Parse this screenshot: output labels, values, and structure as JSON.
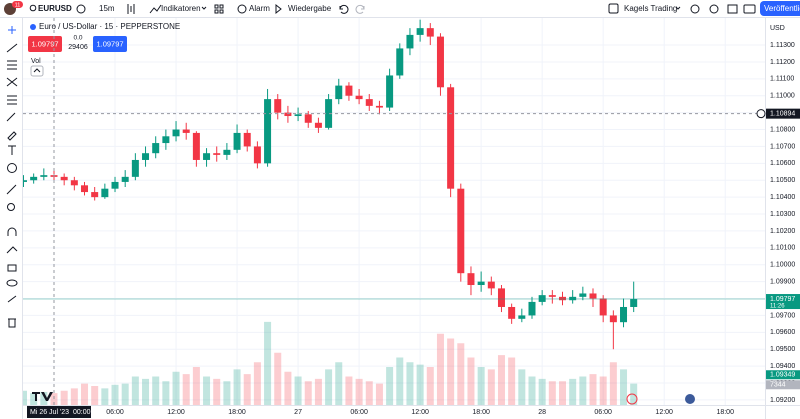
{
  "toolbar": {
    "badge": "11",
    "symbol": "EURUSD",
    "interval": "15m",
    "indicators": "Indikatoren",
    "alert": "Alarm",
    "replay": "Wiedergabe",
    "account": "Kagels Trading",
    "publish": "Veröffentlichen"
  },
  "legend": {
    "title": "Euro / US-Dollar · 15 · PEPPERSTONE",
    "sell": "1.09797",
    "spread": "0.0",
    "count": "29406",
    "buy": "1.09797",
    "vol": "Vol"
  },
  "chart_data": {
    "type": "candlestick",
    "currency": "USD",
    "ylim": [
      1.0917,
      1.1146
    ],
    "yticks": [
      {
        "value": 1.092,
        "label": "1.09200"
      },
      {
        "value": 1.093,
        "label": "1.09300"
      },
      {
        "value": 1.094,
        "label": "1.09400"
      },
      {
        "value": 1.095,
        "label": "1.09500"
      },
      {
        "value": 1.096,
        "label": "1.09600"
      },
      {
        "value": 1.097,
        "label": "1.09700"
      },
      {
        "value": 1.098,
        "label": "1.09800"
      },
      {
        "value": 1.099,
        "label": "1.09900"
      },
      {
        "value": 1.1,
        "label": "1.10000"
      },
      {
        "value": 1.101,
        "label": "1.10100"
      },
      {
        "value": 1.102,
        "label": "1.10200"
      },
      {
        "value": 1.103,
        "label": "1.10300"
      },
      {
        "value": 1.104,
        "label": "1.10400"
      },
      {
        "value": 1.105,
        "label": "1.10500"
      },
      {
        "value": 1.106,
        "label": "1.10600"
      },
      {
        "value": 1.107,
        "label": "1.10700"
      },
      {
        "value": 1.108,
        "label": "1.10800"
      },
      {
        "value": 1.109,
        "label": "1.10900"
      },
      {
        "value": 1.11,
        "label": "1.11000"
      },
      {
        "value": 1.111,
        "label": "1.11100"
      },
      {
        "value": 1.112,
        "label": "1.11200"
      },
      {
        "value": 1.113,
        "label": "1.11300"
      }
    ],
    "time_labels": [
      "06:00",
      "12:00",
      "18:00",
      "27",
      "06:00",
      "12:00",
      "18:00",
      "28",
      "06:00",
      "12:00",
      "18:00"
    ],
    "candles": [
      [
        1.1049,
        1.1053,
        1.1046,
        1.105
      ],
      [
        1.105,
        1.1054,
        1.1048,
        1.1052
      ],
      [
        1.1052,
        1.1057,
        1.105,
        1.1053
      ],
      [
        1.1053,
        1.1056,
        1.1049,
        1.1052
      ],
      [
        1.1052,
        1.1054,
        1.1047,
        1.105
      ],
      [
        1.105,
        1.1052,
        1.1044,
        1.1047
      ],
      [
        1.1047,
        1.1049,
        1.1041,
        1.1043
      ],
      [
        1.1043,
        1.1046,
        1.1038,
        1.104
      ],
      [
        1.104,
        1.1048,
        1.1039,
        1.1045
      ],
      [
        1.1045,
        1.1052,
        1.1043,
        1.1049
      ],
      [
        1.1049,
        1.1056,
        1.1046,
        1.1052
      ],
      [
        1.1052,
        1.1066,
        1.105,
        1.1062
      ],
      [
        1.1062,
        1.107,
        1.1058,
        1.1066
      ],
      [
        1.1066,
        1.1076,
        1.1063,
        1.1072
      ],
      [
        1.1072,
        1.108,
        1.1068,
        1.1076
      ],
      [
        1.1076,
        1.1085,
        1.1073,
        1.108
      ],
      [
        1.108,
        1.1084,
        1.1074,
        1.1078
      ],
      [
        1.1078,
        1.1079,
        1.1058,
        1.1062
      ],
      [
        1.1062,
        1.1069,
        1.1058,
        1.1066
      ],
      [
        1.1066,
        1.107,
        1.1061,
        1.1065
      ],
      [
        1.1065,
        1.1072,
        1.1062,
        1.1068
      ],
      [
        1.1068,
        1.1083,
        1.1066,
        1.1078
      ],
      [
        1.1078,
        1.108,
        1.1067,
        1.107
      ],
      [
        1.107,
        1.1073,
        1.1057,
        1.106
      ],
      [
        1.106,
        1.1104,
        1.1058,
        1.1098
      ],
      [
        1.1098,
        1.1101,
        1.1086,
        1.109
      ],
      [
        1.109,
        1.1094,
        1.1084,
        1.1088
      ],
      [
        1.1088,
        1.1093,
        1.1085,
        1.1089
      ],
      [
        1.1089,
        1.1091,
        1.1081,
        1.1084
      ],
      [
        1.1084,
        1.1087,
        1.1078,
        1.1081
      ],
      [
        1.1081,
        1.1101,
        1.108,
        1.1098
      ],
      [
        1.1098,
        1.111,
        1.1095,
        1.1106
      ],
      [
        1.1106,
        1.1108,
        1.1097,
        1.11
      ],
      [
        1.11,
        1.1104,
        1.1095,
        1.1098
      ],
      [
        1.1098,
        1.1101,
        1.1091,
        1.1094
      ],
      [
        1.1094,
        1.1097,
        1.1089,
        1.1093
      ],
      [
        1.1093,
        1.1116,
        1.1091,
        1.1112
      ],
      [
        1.1112,
        1.1131,
        1.111,
        1.1128
      ],
      [
        1.1128,
        1.114,
        1.1124,
        1.1136
      ],
      [
        1.1136,
        1.1145,
        1.1132,
        1.114
      ],
      [
        1.114,
        1.1143,
        1.113,
        1.1135
      ],
      [
        1.1135,
        1.1137,
        1.11,
        1.1105
      ],
      [
        1.1105,
        1.1107,
        1.104,
        1.1045
      ],
      [
        1.1045,
        1.1048,
        1.099,
        1.0995
      ],
      [
        1.0995,
        1.0999,
        1.0982,
        1.0988
      ],
      [
        1.0988,
        1.0996,
        1.0984,
        1.099
      ],
      [
        1.099,
        1.0993,
        1.0982,
        1.0986
      ],
      [
        1.0986,
        1.0988,
        1.0972,
        1.0975
      ],
      [
        1.0975,
        1.0977,
        1.0965,
        1.0968
      ],
      [
        1.0968,
        1.0974,
        1.0966,
        1.097
      ],
      [
        1.097,
        1.0981,
        1.0968,
        1.0978
      ],
      [
        1.0978,
        1.0985,
        1.0976,
        1.0982
      ],
      [
        1.0982,
        1.0985,
        1.0977,
        1.0981
      ],
      [
        1.0981,
        1.0984,
        1.0976,
        1.0979
      ],
      [
        1.0979,
        1.0985,
        1.0977,
        1.0981
      ],
      [
        1.0981,
        1.0987,
        1.0979,
        1.0983
      ],
      [
        1.0983,
        1.0986,
        1.0975,
        1.098
      ],
      [
        1.098,
        1.0982,
        1.0966,
        1.097
      ],
      [
        1.097,
        1.0973,
        1.095,
        1.0966
      ],
      [
        1.0966,
        1.098,
        1.0963,
        1.0975
      ],
      [
        1.0975,
        1.099,
        1.0972,
        1.09797
      ]
    ],
    "volumes": [
      6000,
      5000,
      5500,
      5000,
      6000,
      7000,
      9000,
      8000,
      7000,
      8500,
      9000,
      12000,
      11000,
      12000,
      10000,
      14000,
      13000,
      16000,
      12000,
      11000,
      10000,
      15000,
      13000,
      18000,
      35000,
      22000,
      14000,
      12000,
      10000,
      11000,
      15000,
      18000,
      12000,
      11000,
      10000,
      9000,
      16000,
      20000,
      18000,
      17000,
      16000,
      30000,
      28000,
      26000,
      20000,
      16000,
      15000,
      21000,
      20000,
      15000,
      12000,
      11000,
      10000,
      10000,
      11000,
      12000,
      13000,
      12000,
      18000,
      15000,
      9000
    ],
    "vol_lim": [
      0,
      40000
    ],
    "up_color": "#089981",
    "down_color": "#f23645",
    "crosshair": {
      "price": {
        "value": 1.10894,
        "label": "1.10894"
      },
      "time": "Mi 26 Jul '23  00:00"
    },
    "last": {
      "price": {
        "value": 1.09797,
        "label": "1.09797"
      },
      "countdown": "11:26"
    },
    "marker": {
      "price": {
        "value": 1.09349,
        "label": "1.09349"
      },
      "volume": "7344"
    }
  }
}
